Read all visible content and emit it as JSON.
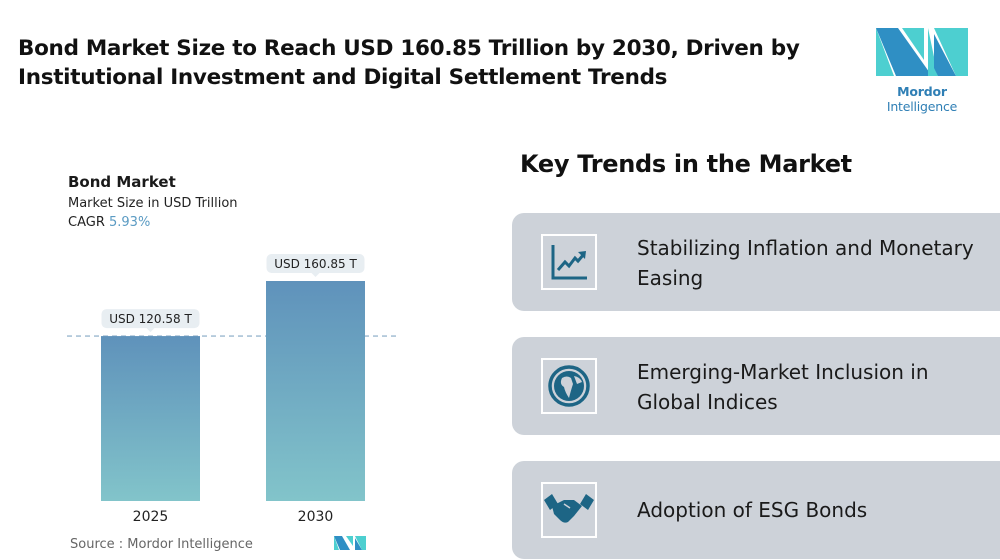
{
  "header": {
    "title": "Bond Market Size to Reach USD 160.85 Trillion by 2030, Driven by Institutional Investment and Digital Settlement Trends"
  },
  "logo": {
    "text_bold": "Mordor",
    "text_rest": "Intelligence",
    "colors": [
      "#2f8fc4",
      "#4dcfd0"
    ]
  },
  "chart_data": {
    "type": "bar",
    "title": "Bond Market",
    "subtitle": "Market Size in USD Trillion",
    "cagr_label": "CAGR",
    "cagr_value": "5.93%",
    "categories": [
      "2025",
      "2030"
    ],
    "values": [
      120.58,
      160.85
    ],
    "data_labels": [
      "USD 120.58 T",
      "USD 160.85 T"
    ],
    "ylim": [
      0,
      160.85
    ],
    "reference_line": 120.58,
    "bar_gradient": [
      "#5f92bb",
      "#82c4ca"
    ],
    "source": "Source :  Mordor Intelligence"
  },
  "trends": {
    "heading": "Key Trends in the Market",
    "items": [
      {
        "label": "Stabilizing Inflation and Monetary Easing",
        "icon": "chart-growth-icon"
      },
      {
        "label": "Emerging-Market Inclusion in Global Indices",
        "icon": "globe-icon"
      },
      {
        "label": "Adoption of ESG Bonds",
        "icon": "handshake-icon"
      }
    ],
    "icon_color": "#1d6585"
  }
}
